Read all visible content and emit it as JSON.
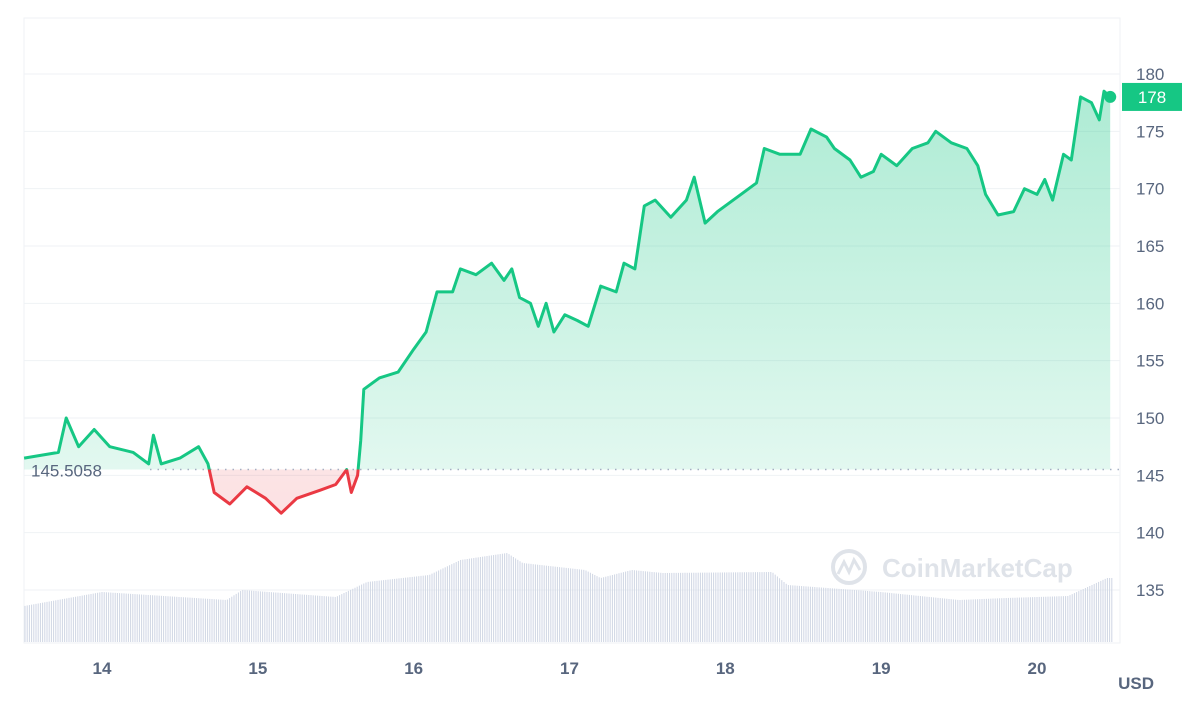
{
  "chart_data": {
    "type": "line",
    "currency_label": "USD",
    "watermark": "CoinMarketCap",
    "baseline_value": 145.5058,
    "baseline_label": "145.5058",
    "current_value_label": "178",
    "colors": {
      "up": "#16c784",
      "down": "#ea3943",
      "volume": "#cfd6e4",
      "grid": "#eff2f5"
    },
    "grid": true,
    "ylim": [
      130,
      185
    ],
    "y_ticks": [
      135,
      140,
      145,
      150,
      155,
      160,
      165,
      170,
      175,
      180
    ],
    "y_tick_labels": [
      "135",
      "140",
      "145",
      "150",
      "155",
      "160",
      "165",
      "170",
      "175",
      "180"
    ],
    "xlim": [
      13.5,
      20.55
    ],
    "x_ticks": [
      14,
      15,
      16,
      17,
      18,
      19,
      20
    ],
    "x_tick_labels": [
      "14",
      "15",
      "16",
      "17",
      "18",
      "19",
      "20"
    ],
    "price": {
      "x": [
        13.5,
        13.72,
        13.77,
        13.85,
        13.95,
        14.05,
        14.2,
        14.3,
        14.33,
        14.38,
        14.5,
        14.62,
        14.68,
        14.72,
        14.82,
        14.93,
        15.05,
        15.15,
        15.25,
        15.4,
        15.5,
        15.57,
        15.6,
        15.64,
        15.66,
        15.68,
        15.78,
        15.9,
        16.0,
        16.08,
        16.15,
        16.25,
        16.3,
        16.4,
        16.5,
        16.58,
        16.63,
        16.68,
        16.75,
        16.8,
        16.85,
        16.9,
        16.97,
        17.05,
        17.12,
        17.2,
        17.3,
        17.35,
        17.42,
        17.48,
        17.55,
        17.65,
        17.75,
        17.8,
        17.87,
        17.95,
        18.1,
        18.2,
        18.25,
        18.35,
        18.48,
        18.55,
        18.65,
        18.7,
        18.8,
        18.87,
        18.95,
        19.0,
        19.1,
        19.2,
        19.3,
        19.35,
        19.45,
        19.55,
        19.62,
        19.67,
        19.75,
        19.85,
        19.92,
        20.0,
        20.05,
        20.1,
        20.17,
        20.22,
        20.28,
        20.35,
        20.4,
        20.43,
        20.47
      ],
      "y": [
        146.5,
        147,
        150,
        147.5,
        149,
        147.5,
        147,
        146,
        148.5,
        146,
        146.5,
        147.5,
        146,
        143.5,
        142.5,
        144,
        143,
        141.7,
        143,
        143.7,
        144.2,
        145.5,
        143.5,
        145,
        148,
        152.5,
        153.5,
        154,
        156,
        157.5,
        161,
        161,
        163,
        162.5,
        163.5,
        162,
        163,
        160.5,
        160,
        158,
        160,
        157.5,
        159,
        158.5,
        158,
        161.5,
        161,
        163.5,
        163,
        168.5,
        169,
        167.5,
        169,
        171,
        167,
        168,
        169.5,
        170.5,
        173.5,
        173,
        173,
        175.2,
        174.5,
        173.5,
        172.5,
        171,
        171.5,
        173,
        172,
        173.5,
        174,
        175,
        174,
        173.5,
        172,
        169.5,
        167.7,
        168,
        170,
        169.5,
        170.8,
        169,
        173,
        172.5,
        178,
        177.5,
        176,
        178.5,
        178
      ]
    },
    "volume_relative": {
      "x": [
        13.5,
        14.0,
        14.8,
        14.9,
        15.5,
        15.7,
        16.1,
        16.3,
        16.6,
        16.7,
        17.1,
        17.2,
        17.4,
        17.6,
        18.3,
        18.4,
        19.0,
        19.5,
        19.8,
        20.2,
        20.45
      ],
      "y": [
        36,
        50,
        42,
        52,
        45,
        60,
        67,
        82,
        89,
        79,
        72,
        64,
        72,
        69,
        70,
        57,
        50,
        42,
        44,
        46,
        64
      ]
    }
  }
}
